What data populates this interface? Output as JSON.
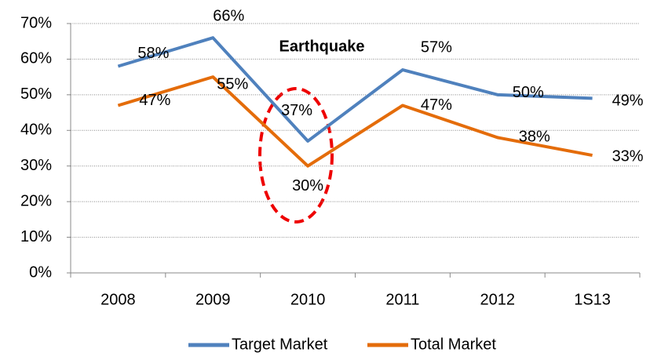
{
  "chart_data": {
    "type": "line",
    "annotations": [
      "Earthquake"
    ],
    "categories": [
      "2008",
      "2009",
      "2010",
      "2011",
      "2012",
      "1S13"
    ],
    "series": [
      {
        "name": "Target Market",
        "color": "#4f81bd",
        "values": [
          58,
          66,
          37,
          57,
          50,
          49
        ],
        "value_labels": [
          "58%",
          "66%",
          "37%",
          "57%",
          "50%",
          "49%"
        ]
      },
      {
        "name": "Total Market",
        "color": "#e46c0a",
        "values": [
          47,
          55,
          30,
          47,
          38,
          33
        ],
        "value_labels": [
          "47%",
          "55%",
          "30%",
          "47%",
          "38%",
          "33%"
        ]
      }
    ],
    "ylim": [
      0,
      70
    ],
    "yticks": [
      {
        "value": 0,
        "label": "0%"
      },
      {
        "value": 10,
        "label": "10%"
      },
      {
        "value": 20,
        "label": "20%"
      },
      {
        "value": 30,
        "label": "30%"
      },
      {
        "value": 40,
        "label": "40%"
      },
      {
        "value": 50,
        "label": "50%"
      },
      {
        "value": 60,
        "label": "60%"
      },
      {
        "value": 70,
        "label": "70%"
      }
    ],
    "grid": true,
    "legend": "bottom"
  }
}
